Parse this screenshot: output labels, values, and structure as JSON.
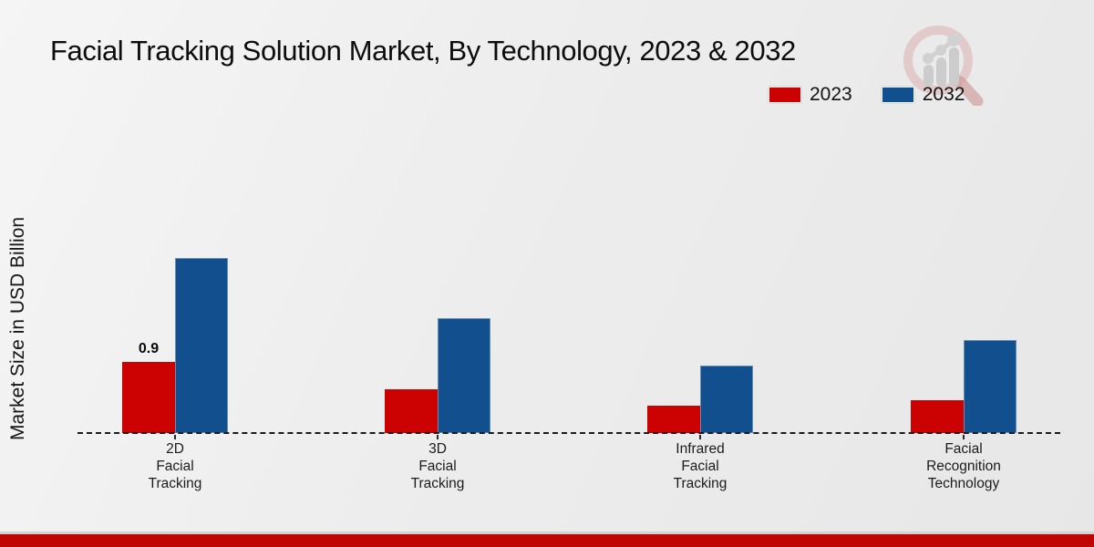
{
  "title": "Facial Tracking Solution Market, By Technology, 2023 & 2032",
  "ylabel": "Market Size in USD Billion",
  "footer": {
    "band_color": "#c00505"
  },
  "logo": {
    "name": "magnifier-growth-chart-logo"
  },
  "chart_data": {
    "type": "bar",
    "title": "Facial Tracking Solution Market, By Technology, 2023 & 2032",
    "ylabel": "Market Size in USD Billion",
    "xlabel": "",
    "categories": [
      [
        "2D",
        "Facial",
        "Tracking"
      ],
      [
        "3D",
        "Facial",
        "Tracking"
      ],
      [
        "Infrared",
        "Facial",
        "Tracking"
      ],
      [
        "Facial",
        "Recognition",
        "Technology"
      ]
    ],
    "series": [
      {
        "name": "2023",
        "color": "#cc0101",
        "values": [
          0.9,
          0.55,
          0.35,
          0.42
        ]
      },
      {
        "name": "2032",
        "color": "#114f8e",
        "values": [
          2.21,
          1.45,
          0.85,
          1.18
        ]
      }
    ],
    "bar_labels": [
      {
        "series": 0,
        "category": 0,
        "text": "0.9"
      }
    ],
    "ylim": [
      0,
      2.5
    ],
    "grid": false,
    "baseline_style": "dashed",
    "legend_position": "top-right"
  }
}
